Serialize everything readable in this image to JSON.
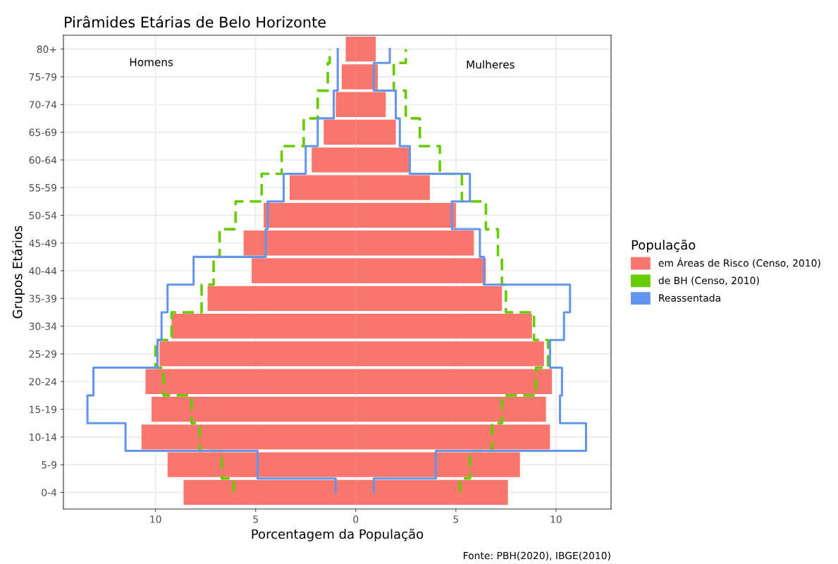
{
  "chart_data": {
    "type": "bar",
    "orientation": "horizontal",
    "stacked": true,
    "title": "Pirâmides Etárias de Belo Horizonte",
    "xlabel": "Porcentagem da População",
    "ylabel": "Grupos Etários",
    "legend_title": "População",
    "legend": "right",
    "grid": true,
    "categories": [
      "80+",
      "75-79",
      "70-74",
      "65-69",
      "60-64",
      "55-59",
      "50-54",
      "45-49",
      "40-44",
      "35-39",
      "30-34",
      "25-29",
      "20-24",
      "15-19",
      "10-14",
      "5-9",
      "0-4"
    ],
    "xlim": [
      -14.6,
      12.75
    ],
    "xticks": [
      {
        "value": -10,
        "label": "10"
      },
      {
        "value": -5,
        "label": "5"
      },
      0,
      5,
      10
    ],
    "series": [
      {
        "name": "em Áreas de Risco (Censo, 2010)",
        "color": "#f8766d",
        "values": [
          -0.5,
          -0.7,
          -1.0,
          -1.6,
          -2.2,
          -3.3,
          -4.6,
          -5.6,
          -5.2,
          -7.4,
          -9.2,
          -9.8,
          -10.5,
          -10.2,
          -10.7,
          -9.4,
          -8.6
        ]
      },
      {
        "color": "#f8766d",
        "values": [
          1.0,
          1.1,
          1.5,
          2.0,
          2.7,
          3.7,
          5.0,
          5.9,
          6.5,
          7.3,
          8.8,
          9.4,
          9.8,
          9.5,
          9.7,
          8.2,
          7.6
        ]
      },
      {
        "name": "de BH (Censo, 2010)",
        "type": "step",
        "line_style": "dashed",
        "color": "#66cc00",
        "values": [
          -1.3,
          -1.4,
          -1.9,
          -2.6,
          -3.7,
          -4.7,
          -6.0,
          -6.8,
          -7.1,
          -7.7,
          -9.2,
          -10.0,
          -9.6,
          -8.2,
          -7.8,
          -6.7,
          -6.1
        ]
      },
      {
        "type": "step",
        "line_style": "dashed",
        "color": "#66cc00",
        "values": [
          2.5,
          1.9,
          2.5,
          3.2,
          4.2,
          5.3,
          6.5,
          7.1,
          7.3,
          7.5,
          8.9,
          9.6,
          9.0,
          7.3,
          6.8,
          5.7,
          5.2
        ]
      },
      {
        "name": "Reassentada",
        "type": "step",
        "line_style": "solid",
        "color": "#6495ed",
        "values": [
          -0.9,
          -0.9,
          -1.1,
          -1.9,
          -2.5,
          -3.6,
          -4.4,
          -4.5,
          -8.1,
          -9.4,
          -9.7,
          -9.9,
          -13.1,
          -13.4,
          -11.5,
          -4.9,
          -1.0
        ]
      },
      {
        "type": "step",
        "line_style": "solid",
        "color": "#6495ed",
        "values": [
          1.7,
          0.9,
          2.0,
          2.2,
          2.7,
          5.7,
          4.8,
          6.2,
          6.4,
          10.7,
          10.4,
          9.7,
          10.3,
          10.2,
          11.5,
          4.0,
          0.9
        ]
      }
    ],
    "annotations": [
      "Homens",
      "Mulheres",
      "Fonte: PBH(2020), IBGE(2010)"
    ]
  }
}
